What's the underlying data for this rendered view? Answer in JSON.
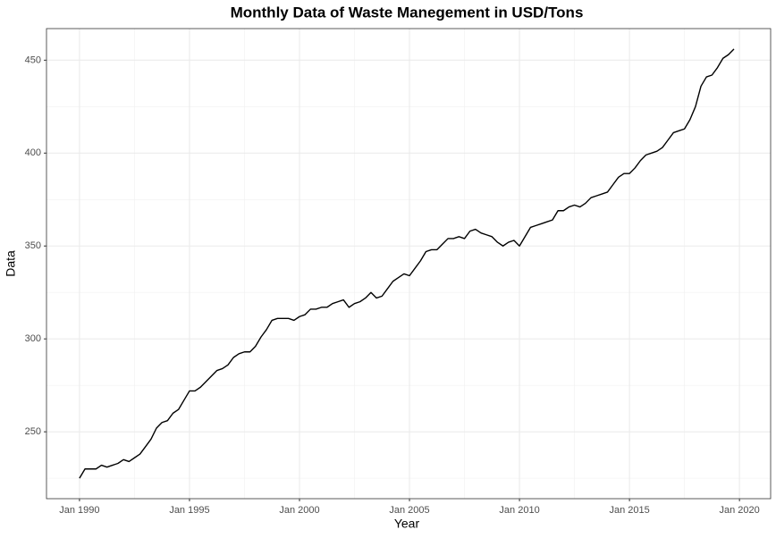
{
  "chart_data": {
    "type": "line",
    "title": "Monthly Data of Waste Manegement in USD/Tons",
    "x_label": "Year",
    "y_label": "Data",
    "color": "#000000",
    "grid": true,
    "x": [
      "1990-01",
      "1990-04",
      "1990-07",
      "1990-10",
      "1991-01",
      "1991-04",
      "1991-07",
      "1991-10",
      "1992-01",
      "1992-04",
      "1992-07",
      "1992-10",
      "1993-01",
      "1993-04",
      "1993-07",
      "1993-10",
      "1994-01",
      "1994-04",
      "1994-07",
      "1994-10",
      "1995-01",
      "1995-04",
      "1995-07",
      "1995-10",
      "1996-01",
      "1996-04",
      "1996-07",
      "1996-10",
      "1997-01",
      "1997-04",
      "1997-07",
      "1997-10",
      "1998-01",
      "1998-04",
      "1998-07",
      "1998-10",
      "1999-01",
      "1999-04",
      "1999-07",
      "1999-10",
      "2000-01",
      "2000-04",
      "2000-07",
      "2000-10",
      "2001-01",
      "2001-04",
      "2001-07",
      "2001-10",
      "2002-01",
      "2002-04",
      "2002-07",
      "2002-10",
      "2003-01",
      "2003-04",
      "2003-07",
      "2003-10",
      "2004-01",
      "2004-04",
      "2004-07",
      "2004-10",
      "2005-01",
      "2005-04",
      "2005-07",
      "2005-10",
      "2006-01",
      "2006-04",
      "2006-07",
      "2006-10",
      "2007-01",
      "2007-04",
      "2007-07",
      "2007-10",
      "2008-01",
      "2008-04",
      "2008-07",
      "2008-10",
      "2009-01",
      "2009-04",
      "2009-07",
      "2009-10",
      "2010-01",
      "2010-04",
      "2010-07",
      "2010-10",
      "2011-01",
      "2011-04",
      "2011-07",
      "2011-10",
      "2012-01",
      "2012-04",
      "2012-07",
      "2012-10",
      "2013-01",
      "2013-04",
      "2013-07",
      "2013-10",
      "2014-01",
      "2014-04",
      "2014-07",
      "2014-10",
      "2015-01",
      "2015-04",
      "2015-07",
      "2015-10",
      "2016-01",
      "2016-04",
      "2016-07",
      "2016-10",
      "2017-01",
      "2017-04",
      "2017-07",
      "2017-10",
      "2018-01",
      "2018-04",
      "2018-07",
      "2018-10",
      "2019-01",
      "2019-04",
      "2019-07",
      "2019-10"
    ],
    "values": [
      225,
      230,
      230,
      230,
      232,
      231,
      232,
      233,
      235,
      234,
      236,
      238,
      242,
      246,
      252,
      255,
      256,
      260,
      262,
      267,
      272,
      272,
      274,
      277,
      280,
      283,
      284,
      286,
      290,
      292,
      293,
      293,
      296,
      301,
      305,
      310,
      311,
      311,
      311,
      310,
      312,
      313,
      316,
      316,
      317,
      317,
      319,
      320,
      321,
      317,
      319,
      320,
      322,
      325,
      322,
      323,
      327,
      331,
      333,
      335,
      334,
      338,
      342,
      347,
      348,
      348,
      351,
      354,
      354,
      355,
      354,
      358,
      359,
      357,
      356,
      355,
      352,
      350,
      352,
      353,
      350,
      355,
      360,
      361,
      362,
      363,
      364,
      369,
      369,
      371,
      372,
      371,
      373,
      376,
      377,
      378,
      379,
      383,
      387,
      389,
      389,
      392,
      396,
      399,
      400,
      401,
      403,
      407,
      411,
      412,
      413,
      418,
      425,
      436,
      441,
      442,
      446,
      451,
      453,
      456
    ],
    "xlim": [
      "1988-07",
      "2021-06"
    ],
    "xticks": [
      {
        "value": "1990-01",
        "label": "Jan 1990"
      },
      {
        "value": "1995-01",
        "label": "Jan 1995"
      },
      {
        "value": "2000-01",
        "label": "Jan 2000"
      },
      {
        "value": "2005-01",
        "label": "Jan 2005"
      },
      {
        "value": "2010-01",
        "label": "Jan 2010"
      },
      {
        "value": "2015-01",
        "label": "Jan 2015"
      },
      {
        "value": "2020-01",
        "label": "Jan 2020"
      }
    ],
    "ylim": [
      214,
      467
    ],
    "yticks": [
      250,
      300,
      350,
      400,
      450
    ]
  }
}
